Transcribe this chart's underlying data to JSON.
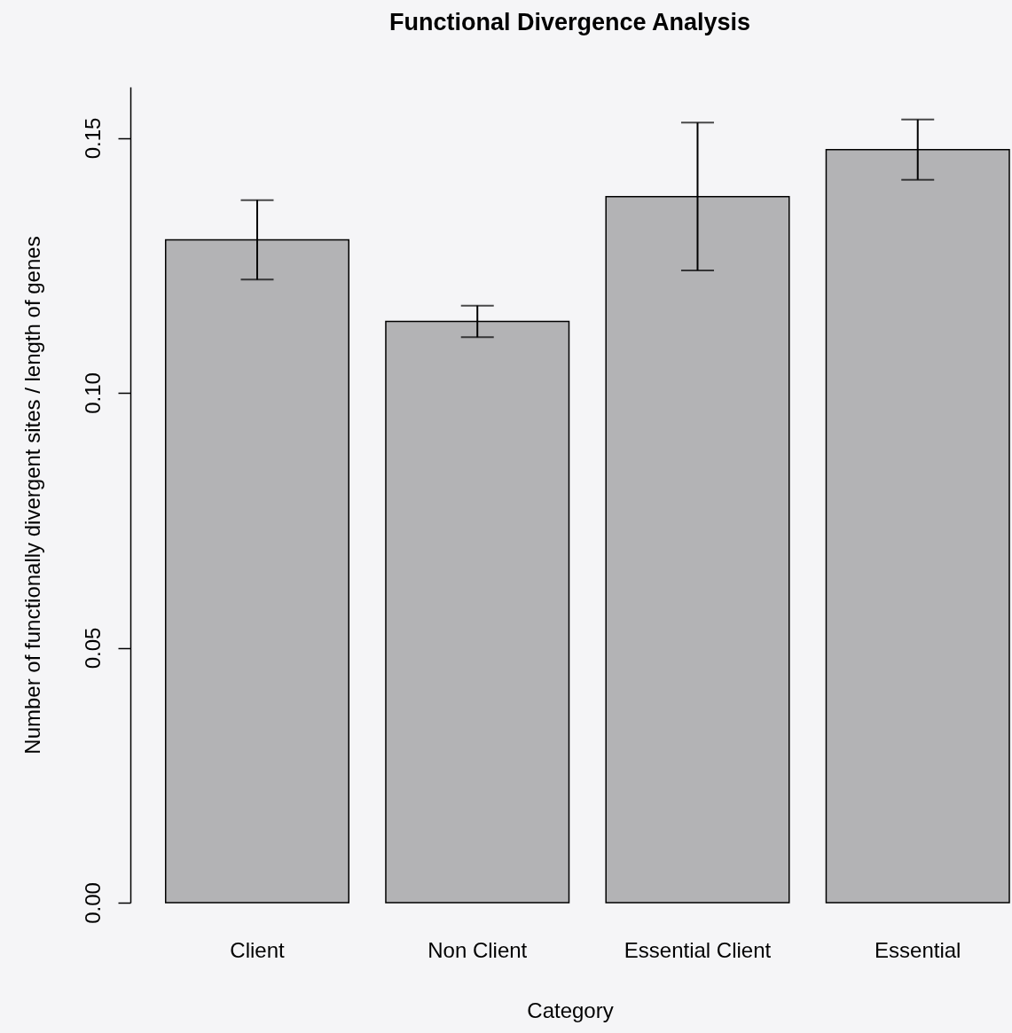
{
  "chart_data": {
    "type": "bar",
    "title": "Functional Divergence Analysis",
    "xlabel": "Category",
    "ylabel": "Number of functionally divergent sites / length of genes",
    "categories": [
      "Client",
      "Non Client",
      "Essential Client",
      "Essential"
    ],
    "values": [
      0.13,
      0.114,
      0.1385,
      0.1477
    ],
    "errors": [
      0.0078,
      0.0031,
      0.0145,
      0.0059
    ],
    "color": "#b3b3b5",
    "ylim": [
      0,
      0.16
    ],
    "yticks": [
      {
        "value": 0,
        "label": "0.00"
      },
      0.05,
      {
        "value": 0.1,
        "label": "0.10"
      },
      0.15
    ]
  }
}
